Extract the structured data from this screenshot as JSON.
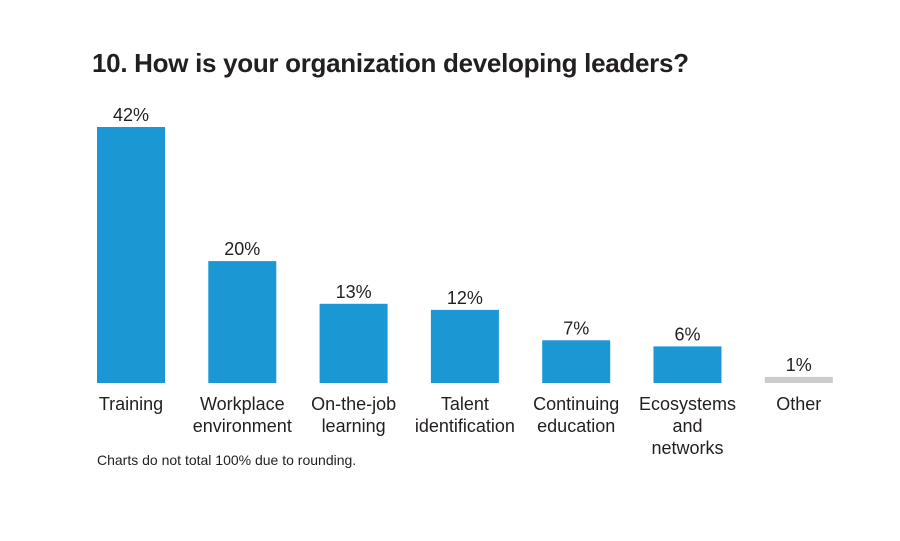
{
  "chart_data": {
    "type": "bar",
    "title": "10. How is your organization developing leaders?",
    "categories": [
      [
        "Training"
      ],
      [
        "Workplace",
        "environment"
      ],
      [
        "On-the-job",
        "learning"
      ],
      [
        "Talent",
        "identification"
      ],
      [
        "Continuing",
        "education"
      ],
      [
        "Ecosystems",
        "and",
        "networks"
      ],
      [
        "Other"
      ]
    ],
    "values": [
      42,
      20,
      13,
      12,
      7,
      6,
      1
    ],
    "value_labels": [
      "42%",
      "20%",
      "13%",
      "12%",
      "7%",
      "6%",
      "1%"
    ],
    "bar_colors": [
      "#1b98d3",
      "#1b98d3",
      "#1b98d3",
      "#1b98d3",
      "#1b98d3",
      "#1b98d3",
      "#cccccc"
    ],
    "ylim": [
      0,
      42
    ],
    "xlabel": "",
    "ylabel": "",
    "grid": false,
    "legend": "none"
  },
  "note": "Charts do not total 100% due to rounding."
}
